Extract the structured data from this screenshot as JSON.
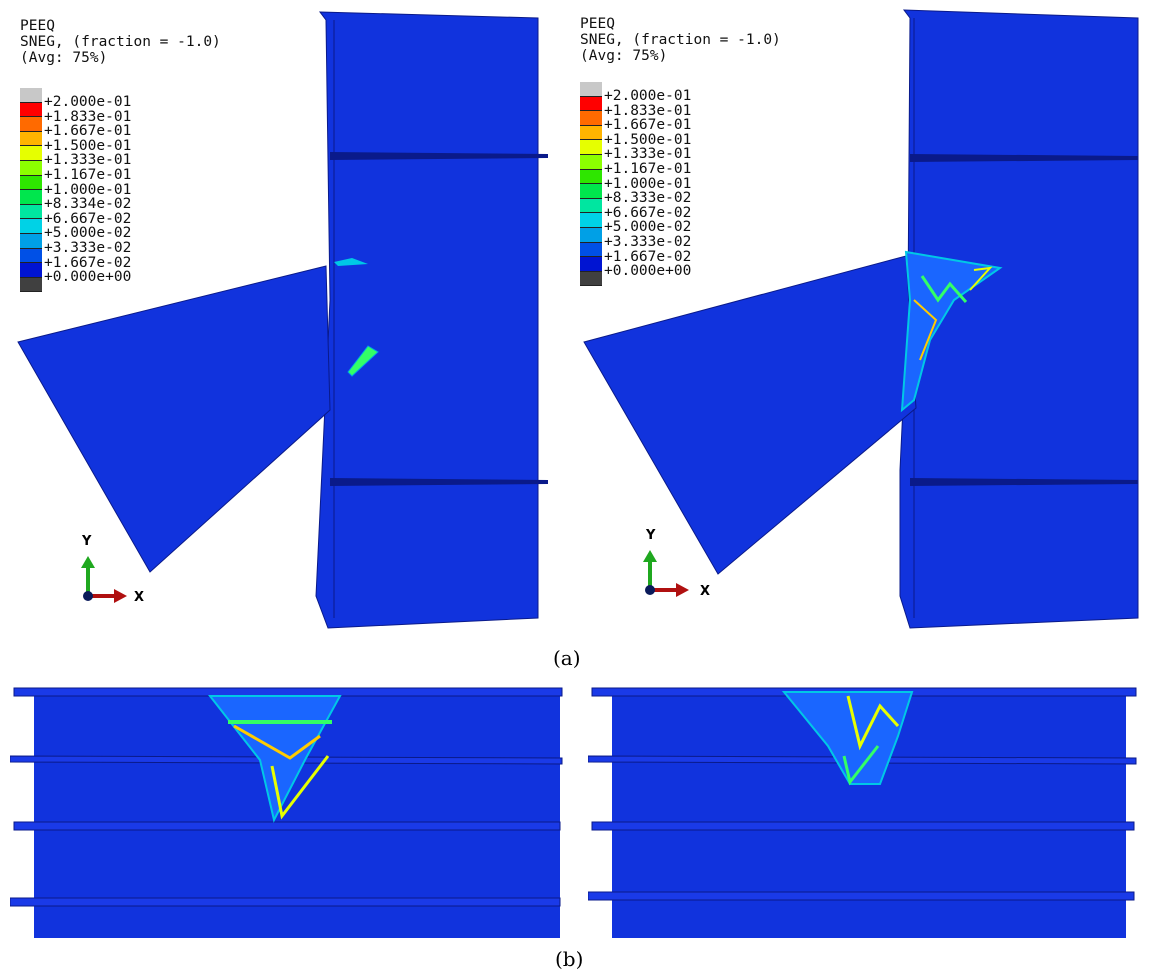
{
  "legend_left": {
    "variable": "PEEQ",
    "section": "SNEG, (fraction = -1.0)",
    "averaging": "(Avg: 75%)",
    "values": [
      "+2.000e-01",
      "+1.833e-01",
      "+1.667e-01",
      "+1.500e-01",
      "+1.333e-01",
      "+1.167e-01",
      "+1.000e-01",
      "+8.334e-02",
      "+6.667e-02",
      "+5.000e-02",
      "+3.333e-02",
      "+1.667e-02",
      "+0.000e+00"
    ]
  },
  "legend_right": {
    "variable": "PEEQ",
    "section": "SNEG, (fraction = -1.0)",
    "averaging": "(Avg: 75%)",
    "values": [
      "+2.000e-01",
      "+1.833e-01",
      "+1.667e-01",
      "+1.500e-01",
      "+1.333e-01",
      "+1.167e-01",
      "+1.000e-01",
      "+8.333e-02",
      "+6.667e-02",
      "+5.000e-02",
      "+3.333e-02",
      "+1.667e-02",
      "+0.000e+00"
    ]
  },
  "legend_colors": [
    "#c8c8c8",
    "#ff0000",
    "#ff6a00",
    "#ffb400",
    "#e6ff00",
    "#8cff00",
    "#2ee600",
    "#00e64d",
    "#00e6a0",
    "#00d2e6",
    "#00a0e6",
    "#0050e6",
    "#0014d2",
    "#404040"
  ],
  "triad": {
    "y_label": "Y",
    "x_label": "X"
  },
  "captions": {
    "a": "(a)",
    "b": "(b)"
  },
  "colors": {
    "model_blue": "#1133dd",
    "model_edge": "#0a1a8a"
  }
}
